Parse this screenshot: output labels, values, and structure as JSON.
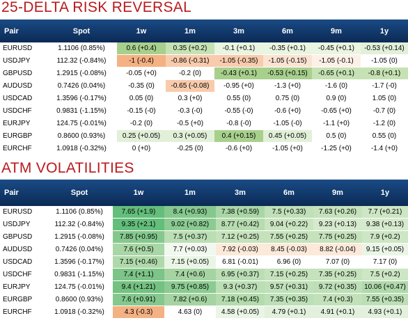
{
  "rr": {
    "title": "25-DELTA RISK REVERSAL",
    "headers": [
      "Pair",
      "Spot",
      "1w",
      "1m",
      "3m",
      "6m",
      "9m",
      "1y"
    ],
    "rows": [
      {
        "pair": "EURUSD",
        "spot": "1.1106 (0.85%)",
        "cells": [
          "0.6 (+0.4)",
          "0.35 (+0.2)",
          "-0.1 (+0.1)",
          "-0.35 (+0.1)",
          "-0.45 (+0.1)",
          "-0.53 (+0.14)"
        ],
        "colors": [
          "#a8d08d",
          "#c6e2b4",
          "#e9f4e1",
          "#e9f4e1",
          "#e9f4e1",
          "#e2f0d9"
        ]
      },
      {
        "pair": "USDJPY",
        "spot": "112.32 (-0.84%)",
        "cells": [
          "-1 (-0.4)",
          "-0.86 (-0.31)",
          "-1.05 (-0.35)",
          "-1.05 (-0.15)",
          "-1.05 (-0.1)",
          "-1.05 (0)"
        ],
        "colors": [
          "#f4b183",
          "#f8cbad",
          "#f8cbad",
          "#fbe3d2",
          "#fdf0e7",
          "#ffffff"
        ]
      },
      {
        "pair": "GBPUSD",
        "spot": "1.2915 (-0.08%)",
        "cells": [
          "-0.05 (+0)",
          "-0.2 (0)",
          "-0.43 (+0.1)",
          "-0.53 (+0.15)",
          "-0.65 (+0.1)",
          "-0.8 (+0.1)"
        ],
        "colors": [
          "#ffffff",
          "#ffffff",
          "#a8d08d",
          "#a8d08d",
          "#c6e2b4",
          "#c6e2b4"
        ]
      },
      {
        "pair": "AUDUSD",
        "spot": "0.7426 (0.04%)",
        "cells": [
          "-0.35 (0)",
          "-0.65 (-0.08)",
          "-0.95 (+0)",
          "-1.3 (+0)",
          "-1.6 (0)",
          "-1.7 (-0)"
        ],
        "colors": [
          "#ffffff",
          "#f8cbad",
          "#ffffff",
          "#ffffff",
          "#ffffff",
          "#ffffff"
        ]
      },
      {
        "pair": "USDCAD",
        "spot": "1.3596 (-0.17%)",
        "cells": [
          "0.05 (0)",
          "0.3 (+0)",
          "0.55 (0)",
          "0.75 (0)",
          "0.9 (0)",
          "1.05 (0)"
        ],
        "colors": [
          "#ffffff",
          "#ffffff",
          "#ffffff",
          "#ffffff",
          "#ffffff",
          "#ffffff"
        ]
      },
      {
        "pair": "USDCHF",
        "spot": "0.9831 (-1.15%)",
        "cells": [
          "-0.15 (-0)",
          "-0.3 (-0)",
          "-0.55 (-0)",
          "-0.6 (+0)",
          "-0.65 (+0)",
          "-0.7 (0)"
        ],
        "colors": [
          "#ffffff",
          "#ffffff",
          "#ffffff",
          "#ffffff",
          "#ffffff",
          "#ffffff"
        ]
      },
      {
        "pair": "EURJPY",
        "spot": "124.75 (-0.01%)",
        "cells": [
          "-0.2 (0)",
          "-0.5 (+0)",
          "-0.8 (-0)",
          "-1.05 (-0)",
          "-1.1 (+0)",
          "-1.2 (0)"
        ],
        "colors": [
          "#ffffff",
          "#ffffff",
          "#ffffff",
          "#ffffff",
          "#ffffff",
          "#ffffff"
        ]
      },
      {
        "pair": "EURGBP",
        "spot": "0.8600 (0.93%)",
        "cells": [
          "0.25 (+0.05)",
          "0.3 (+0.05)",
          "0.4 (+0.15)",
          "0.45 (+0.05)",
          "0.5 (0)",
          "0.55 (0)"
        ],
        "colors": [
          "#e2f0d9",
          "#e2f0d9",
          "#a8d08d",
          "#e2f0d9",
          "#ffffff",
          "#ffffff"
        ]
      },
      {
        "pair": "EURCHF",
        "spot": "1.0918 (-0.32%)",
        "cells": [
          "0 (+0)",
          "-0.25 (0)",
          "-0.6 (+0)",
          "-1.05 (+0)",
          "-1.25 (+0)",
          "-1.4 (+0)"
        ],
        "colors": [
          "#ffffff",
          "#ffffff",
          "#ffffff",
          "#ffffff",
          "#ffffff",
          "#ffffff"
        ]
      }
    ]
  },
  "atm": {
    "title": "ATM VOLATILITIES",
    "headers": [
      "Pair",
      "Spot",
      "1w",
      "1m",
      "3m",
      "6m",
      "9m",
      "1y"
    ],
    "rows": [
      {
        "pair": "EURUSD",
        "spot": "1.1106 (0.85%)",
        "cells": [
          "7.65 (+1.9)",
          "8.4 (+0.93)",
          "7.38 (+0.59)",
          "7.5 (+0.33)",
          "7.63 (+0.26)",
          "7.7 (+0.21)"
        ],
        "colors": [
          "#63be7b",
          "#85c88e",
          "#a9d6a6",
          "#bfe0b8",
          "#c6e2bc",
          "#cde6c4"
        ]
      },
      {
        "pair": "USDJPY",
        "spot": "112.32 (-0.84%)",
        "cells": [
          "9.35 (+2.1)",
          "9.02 (+0.82)",
          "8.77 (+0.42)",
          "9.04 (+0.22)",
          "9.23 (+0.13)",
          "9.38 (+0.13)"
        ],
        "colors": [
          "#63be7b",
          "#8bcb92",
          "#b6dcb0",
          "#cae4c0",
          "#d6eacd",
          "#d6eacd"
        ]
      },
      {
        "pair": "GBPUSD",
        "spot": "1.2915 (-0.08%)",
        "cells": [
          "7.85 (+0.95)",
          "7.5 (+0.37)",
          "7.12 (+0.25)",
          "7.55 (+0.25)",
          "7.75 (+0.25)",
          "7.9 (+0.2)"
        ],
        "colors": [
          "#85c88e",
          "#bbdeb5",
          "#c6e2bc",
          "#c6e2bc",
          "#c6e2bc",
          "#cde6c4"
        ]
      },
      {
        "pair": "AUDUSD",
        "spot": "0.7426 (0.04%)",
        "cells": [
          "7.6 (+0.5)",
          "7.7 (+0.03)",
          "7.92 (-0.03)",
          "8.45 (-0.03)",
          "8.82 (-0.04)",
          "9.15 (+0.05)"
        ],
        "colors": [
          "#a9d6a6",
          "#f1f8ee",
          "#fde9d9",
          "#fde9d9",
          "#fde9d9",
          "#eaf5e6"
        ]
      },
      {
        "pair": "USDCAD",
        "spot": "1.3596 (-0.17%)",
        "cells": [
          "7.15 (+0.46)",
          "7.15 (+0.05)",
          "6.81 (-0.01)",
          "6.96 (0)",
          "7.07 (0)",
          "7.17 (0)"
        ],
        "colors": [
          "#b0d9ab",
          "#eaf5e6",
          "#ffffff",
          "#ffffff",
          "#ffffff",
          "#ffffff"
        ]
      },
      {
        "pair": "USDCHF",
        "spot": "0.9831 (-1.15%)",
        "cells": [
          "7.4 (+1.1)",
          "7.4 (+0.6)",
          "6.95 (+0.37)",
          "7.15 (+0.25)",
          "7.35 (+0.25)",
          "7.5 (+0.2)"
        ],
        "colors": [
          "#7cc487",
          "#a5d4a2",
          "#bbdeb5",
          "#c6e2bc",
          "#c6e2bc",
          "#cde6c4"
        ]
      },
      {
        "pair": "EURJPY",
        "spot": "124.75 (-0.01%)",
        "cells": [
          "9.4 (+1.21)",
          "9.75 (+0.85)",
          "9.3 (+0.37)",
          "9.57 (+0.31)",
          "9.72 (+0.35)",
          "10.06 (+0.47)"
        ],
        "colors": [
          "#74c182",
          "#8bcb92",
          "#bbdeb5",
          "#c0e0b9",
          "#bddfb7",
          "#b0d9ab"
        ]
      },
      {
        "pair": "EURGBP",
        "spot": "0.8600 (0.93%)",
        "cells": [
          "7.6 (+0.91)",
          "7.82 (+0.6)",
          "7.18 (+0.45)",
          "7.35 (+0.35)",
          "7.4 (+0.3)",
          "7.55 (+0.35)"
        ],
        "colors": [
          "#85c88e",
          "#a5d4a2",
          "#b3dbad",
          "#bddfb7",
          "#c2e1ba",
          "#bddfb7"
        ]
      },
      {
        "pair": "EURCHF",
        "spot": "1.0918 (-0.32%)",
        "cells": [
          "4.3 (-0.3)",
          "4.63 (0)",
          "4.58 (+0.05)",
          "4.79 (+0.1)",
          "4.91 (+0.1)",
          "4.93 (+0.1)"
        ],
        "colors": [
          "#f4b183",
          "#ffffff",
          "#eaf5e6",
          "#e2f0dc",
          "#e2f0dc",
          "#e2f0dc"
        ]
      }
    ]
  }
}
